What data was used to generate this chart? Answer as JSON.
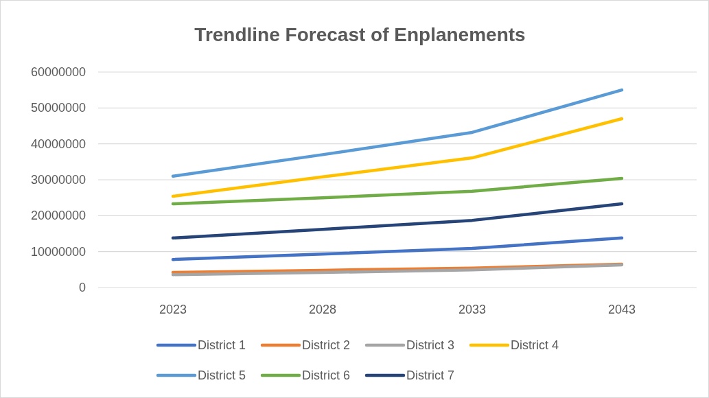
{
  "chart_data": {
    "type": "line",
    "title": "Trendline Forecast of Enplanements",
    "categories": [
      "2023",
      "2028",
      "2033",
      "2043"
    ],
    "series": [
      {
        "name": "District 1",
        "color": "#4472c4",
        "values": [
          7800000,
          9300000,
          10900000,
          13800000
        ]
      },
      {
        "name": "District 2",
        "color": "#ed7d31",
        "values": [
          4200000,
          4800000,
          5400000,
          6500000
        ]
      },
      {
        "name": "District 3",
        "color": "#a5a5a5",
        "values": [
          3600000,
          4200000,
          4900000,
          6300000
        ]
      },
      {
        "name": "District 4",
        "color": "#ffc000",
        "values": [
          25400000,
          30800000,
          36100000,
          47000000
        ]
      },
      {
        "name": "District 5",
        "color": "#5b9bd5",
        "values": [
          31000000,
          37000000,
          43200000,
          55000000
        ]
      },
      {
        "name": "District 6",
        "color": "#70ad47",
        "values": [
          23300000,
          25000000,
          26800000,
          30400000
        ]
      },
      {
        "name": "District 7",
        "color": "#264478",
        "values": [
          13800000,
          16200000,
          18700000,
          23300000
        ]
      }
    ],
    "ylim": [
      0,
      60000000
    ],
    "yticks": [
      0,
      10000000,
      20000000,
      30000000,
      40000000,
      50000000,
      60000000
    ],
    "grid": "y",
    "legend": "bottom",
    "marker": "none",
    "line_style": "solid"
  }
}
